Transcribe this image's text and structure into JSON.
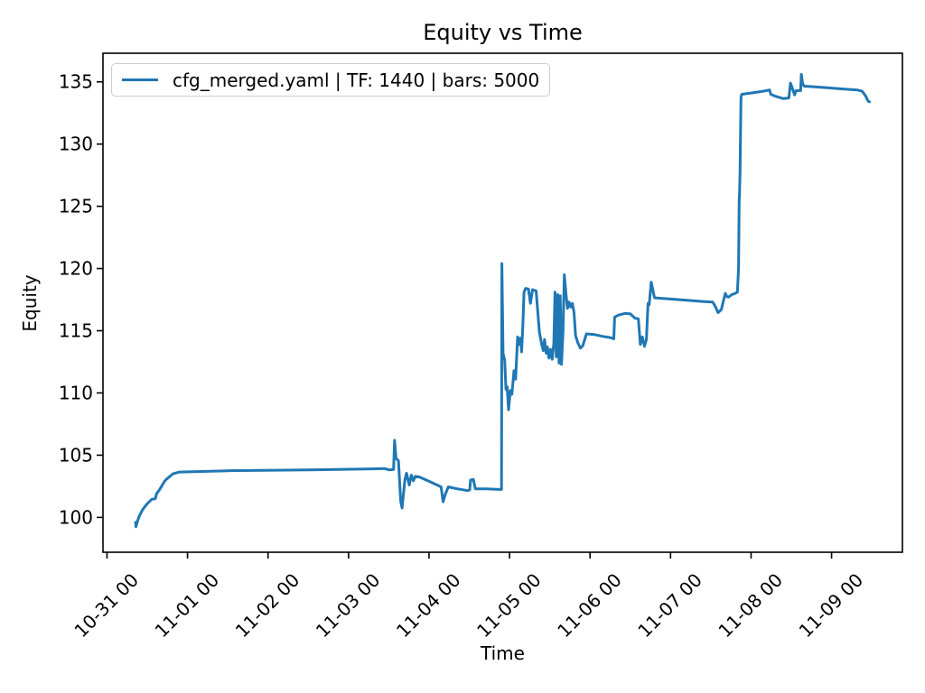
{
  "chart_data": {
    "type": "line",
    "title": "Equity vs Time",
    "xlabel": "Time",
    "ylabel": "Equity",
    "grid": false,
    "colors": {
      "background": "#ffffff",
      "line": "#1f77b4",
      "text": "#000000",
      "legend_border": "#cccccc"
    },
    "legend": {
      "position": "upper left",
      "entries": [
        {
          "label": "cfg_merged.yaml | TF: 1440 | bars: 5000",
          "color": "#1f77b4"
        }
      ]
    },
    "x_units": "days since 10-31 00:00, labels are MM-DD HH",
    "xlim": [
      -0.05,
      9.88
    ],
    "ylim": [
      97.2,
      137.3
    ],
    "xticks": {
      "positions": [
        0,
        1,
        2,
        3,
        4,
        5,
        6,
        7,
        8,
        9
      ],
      "labels": [
        "10-31 00",
        "11-01 00",
        "11-02 00",
        "11-03 00",
        "11-04 00",
        "11-05 00",
        "11-06 00",
        "11-07 00",
        "11-08 00",
        "11-09 00"
      ],
      "rotation_deg": 45
    },
    "yticks": {
      "positions": [
        100,
        105,
        110,
        115,
        120,
        125,
        130,
        135
      ],
      "labels": [
        "100",
        "105",
        "110",
        "115",
        "120",
        "125",
        "130",
        "135"
      ]
    },
    "series": [
      {
        "name": "cfg_merged.yaml | TF: 1440 | bars: 5000",
        "color": "#1f77b4",
        "x": [
          0.355,
          0.36,
          0.372,
          0.4,
          0.445,
          0.5,
          0.555,
          0.6,
          0.615,
          0.65,
          0.715,
          0.735,
          0.82,
          0.9,
          1.5,
          2.5,
          3.3,
          3.45,
          3.5,
          3.56,
          3.572,
          3.59,
          3.62,
          3.648,
          3.665,
          3.7,
          3.72,
          3.755,
          3.78,
          3.805,
          3.83,
          3.88,
          4.0,
          4.1,
          4.15,
          4.175,
          4.205,
          4.24,
          4.35,
          4.48,
          4.505,
          4.515,
          4.55,
          4.575,
          4.7,
          4.88,
          4.9,
          4.905,
          4.92,
          4.94,
          4.955,
          4.97,
          4.988,
          5.01,
          5.03,
          5.055,
          5.075,
          5.1,
          5.12,
          5.135,
          5.15,
          5.165,
          5.18,
          5.2,
          5.235,
          5.26,
          5.285,
          5.33,
          5.37,
          5.4,
          5.42,
          5.435,
          5.455,
          5.47,
          5.49,
          5.51,
          5.53,
          5.55,
          5.565,
          5.58,
          5.6,
          5.615,
          5.63,
          5.645,
          5.665,
          5.68,
          5.7,
          5.72,
          5.74,
          5.76,
          5.78,
          5.8,
          5.82,
          5.85,
          5.88,
          5.91,
          5.955,
          6.05,
          6.15,
          6.25,
          6.295,
          6.305,
          6.35,
          6.44,
          6.5,
          6.56,
          6.6,
          6.625,
          6.65,
          6.675,
          6.7,
          6.72,
          6.735,
          6.76,
          6.78,
          6.8,
          6.9,
          7.0,
          7.2,
          7.4,
          7.525,
          7.56,
          7.59,
          7.63,
          7.68,
          7.7,
          7.72,
          7.76,
          7.8,
          7.83,
          7.845,
          7.852,
          7.856,
          7.86,
          7.863,
          7.875,
          7.885,
          8.0,
          8.15,
          8.23,
          8.245,
          8.3,
          8.4,
          8.47,
          8.49,
          8.52,
          8.54,
          8.56,
          8.615,
          8.625,
          8.64,
          8.66,
          8.8,
          9.0,
          9.2,
          9.32,
          9.35,
          9.38,
          9.42,
          9.455,
          9.47
        ],
        "y": [
          99.6,
          99.25,
          99.55,
          100.1,
          100.65,
          101.1,
          101.45,
          101.5,
          101.9,
          102.2,
          102.9,
          103.05,
          103.5,
          103.65,
          103.75,
          103.82,
          103.9,
          103.92,
          103.82,
          103.85,
          106.2,
          104.75,
          104.55,
          101.3,
          100.75,
          103.0,
          103.55,
          102.6,
          103.4,
          102.95,
          103.3,
          103.25,
          102.9,
          102.6,
          102.45,
          101.25,
          101.9,
          102.45,
          102.3,
          102.15,
          102.2,
          103.0,
          103.05,
          102.3,
          102.3,
          102.25,
          102.25,
          120.4,
          113.2,
          112.6,
          110.3,
          110.5,
          108.65,
          110.2,
          109.9,
          111.8,
          111.1,
          114.5,
          113.9,
          114.4,
          113.3,
          115.4,
          118.1,
          118.4,
          118.35,
          117.2,
          118.3,
          118.2,
          114.9,
          113.9,
          113.4,
          114.3,
          113.2,
          113.7,
          112.8,
          113.5,
          112.7,
          114.0,
          118.1,
          112.9,
          117.9,
          112.4,
          117.8,
          112.3,
          115.0,
          119.5,
          118.0,
          116.8,
          117.3,
          116.9,
          117.2,
          116.5,
          114.6,
          114.0,
          113.6,
          113.8,
          114.75,
          114.7,
          114.55,
          114.45,
          114.35,
          116.1,
          116.25,
          116.4,
          116.35,
          116.0,
          115.95,
          113.9,
          114.5,
          113.75,
          114.3,
          117.2,
          117.1,
          118.9,
          118.3,
          117.65,
          117.6,
          117.55,
          117.45,
          117.35,
          117.3,
          116.9,
          116.45,
          116.7,
          118.0,
          117.75,
          117.7,
          117.9,
          118.0,
          118.1,
          120.0,
          125.5,
          125.8,
          127.0,
          127.5,
          133.8,
          134.0,
          134.1,
          134.25,
          134.35,
          134.0,
          133.85,
          133.65,
          133.7,
          134.9,
          134.35,
          133.95,
          134.3,
          134.3,
          135.6,
          134.85,
          134.65,
          134.6,
          134.5,
          134.4,
          134.35,
          134.3,
          134.25,
          133.9,
          133.45,
          133.4
        ]
      }
    ]
  }
}
